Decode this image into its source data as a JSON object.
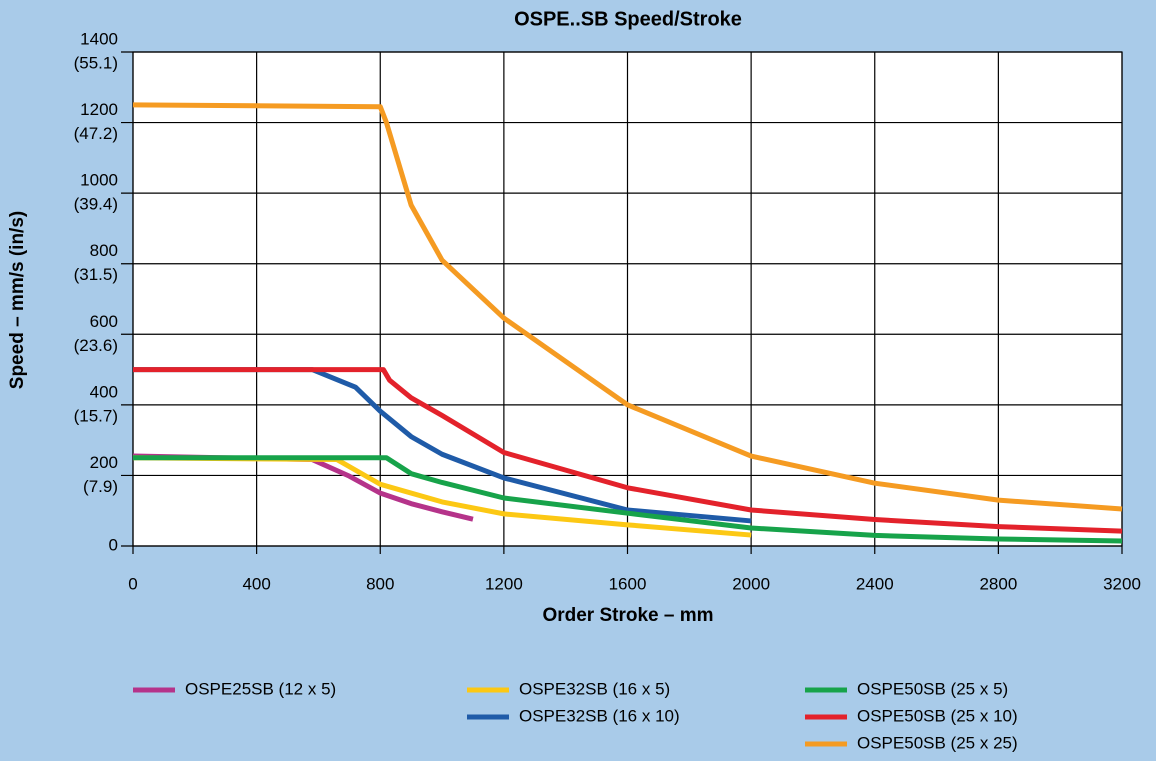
{
  "chart_data": {
    "type": "line",
    "title": "OSPE..SB Speed/Stroke",
    "x_label": "Order Stroke – mm",
    "y_label": "Speed – mm/s (in/s)",
    "xlim": [
      0,
      3200
    ],
    "xticks": [
      0,
      400,
      800,
      1200,
      1600,
      2000,
      2400,
      2800,
      3200
    ],
    "ylim": [
      0,
      1400
    ],
    "yticks": [
      0,
      {
        "value": 200,
        "label": "200",
        "inches": "(7.9)"
      },
      {
        "value": 400,
        "label": "400",
        "inches": "(15.7)"
      },
      {
        "value": 600,
        "label": "600",
        "inches": "(23.6)"
      },
      {
        "value": 800,
        "label": "800",
        "inches": "(31.5)"
      },
      {
        "value": 1000,
        "label": "1000",
        "inches": "(39.4)"
      },
      {
        "value": 1200,
        "label": "1200",
        "inches": "(47.2)"
      },
      {
        "value": 1400,
        "label": "1400",
        "inches": "(55.1)"
      }
    ],
    "grid": true,
    "series": [
      {
        "name": "OSPE25SB (12 x 5)",
        "color": "#b5338a",
        "x": [
          0,
          580,
          700,
          800,
          900,
          1000,
          1100
        ],
        "values": [
          255,
          245,
          198,
          150,
          120,
          97,
          76
        ]
      },
      {
        "name": "OSPE32SB (16 x 5)",
        "color": "#fcc814",
        "x": [
          0,
          660,
          800,
          1000,
          1200,
          1600,
          2000
        ],
        "values": [
          250,
          245,
          175,
          125,
          91,
          60,
          31
        ]
      },
      {
        "name": "OSPE32SB (16 x 10)",
        "color": "#1f5ba8",
        "x": [
          0,
          580,
          720,
          800,
          900,
          1000,
          1200,
          1600,
          2000
        ],
        "values": [
          500,
          500,
          450,
          382,
          310,
          260,
          193,
          102,
          71
        ]
      },
      {
        "name": "OSPE50SB (25 x 5)",
        "color": "#17a34a",
        "x": [
          0,
          820,
          900,
          1000,
          1200,
          1600,
          2000,
          2400,
          2800,
          3200
        ],
        "values": [
          250,
          250,
          205,
          180,
          136,
          93,
          51,
          30,
          20,
          14
        ]
      },
      {
        "name": "OSPE50SB (25 x 10)",
        "color": "#e3222b",
        "x": [
          0,
          810,
          830,
          900,
          1000,
          1200,
          1600,
          2000,
          2400,
          2800,
          3200
        ],
        "values": [
          500,
          500,
          470,
          420,
          370,
          265,
          165,
          102,
          75,
          55,
          42
        ]
      },
      {
        "name": "OSPE50SB (25 x 25)",
        "color": "#f59b22",
        "x": [
          0,
          800,
          820,
          900,
          1000,
          1200,
          1600,
          2000,
          2400,
          2800,
          3200
        ],
        "values": [
          1250,
          1245,
          1200,
          966,
          810,
          646,
          400,
          255,
          178,
          130,
          105
        ]
      }
    ]
  }
}
